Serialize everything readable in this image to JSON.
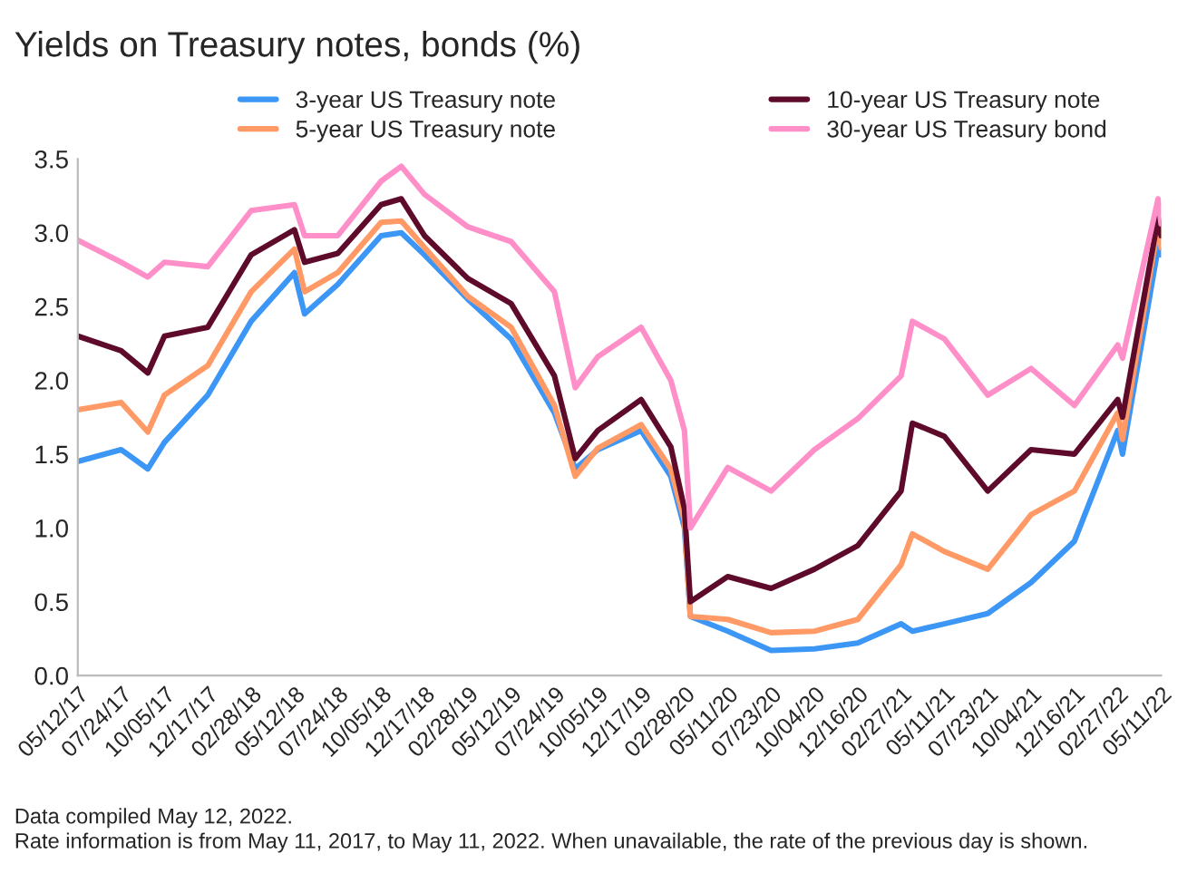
{
  "chart_data": {
    "type": "line",
    "title": "Yields on Treasury notes, bonds (%)",
    "x": [
      "2017-05-12",
      "2017-07-24",
      "2017-09-07",
      "2017-10-05",
      "2017-12-17",
      "2018-02-28",
      "2018-05-12",
      "2018-05-29",
      "2018-07-24",
      "2018-10-05",
      "2018-11-08",
      "2018-12-17",
      "2019-02-28",
      "2019-05-12",
      "2019-07-24",
      "2019-08-28",
      "2019-10-05",
      "2019-12-17",
      "2020-02-05",
      "2020-02-28",
      "2020-03-09",
      "2020-05-11",
      "2020-07-23",
      "2020-10-04",
      "2020-12-16",
      "2021-02-27",
      "2021-03-18",
      "2021-05-11",
      "2021-07-23",
      "2021-10-04",
      "2021-12-16",
      "2022-02-27",
      "2022-03-07",
      "2022-05-06",
      "2022-05-11"
    ],
    "series": [
      {
        "name": "3-year US Treasury note",
        "color": "#3b96f5",
        "values": [
          1.45,
          1.53,
          1.4,
          1.58,
          1.9,
          2.4,
          2.73,
          2.45,
          2.65,
          2.98,
          3.0,
          2.85,
          2.55,
          2.28,
          1.78,
          1.4,
          1.53,
          1.66,
          1.35,
          1.0,
          0.4,
          0.3,
          0.17,
          0.18,
          0.22,
          0.35,
          0.3,
          0.35,
          0.42,
          0.63,
          0.91,
          1.66,
          1.5,
          2.9,
          2.85
        ]
      },
      {
        "name": "5-year US Treasury note",
        "color": "#ff9a66",
        "values": [
          1.8,
          1.85,
          1.65,
          1.9,
          2.1,
          2.6,
          2.89,
          2.6,
          2.73,
          3.07,
          3.08,
          2.9,
          2.57,
          2.36,
          1.83,
          1.35,
          1.54,
          1.7,
          1.4,
          1.05,
          0.4,
          0.38,
          0.29,
          0.3,
          0.38,
          0.75,
          0.96,
          0.84,
          0.72,
          1.09,
          1.25,
          1.78,
          1.6,
          3.05,
          2.9
        ]
      },
      {
        "name": "10-year US Treasury note",
        "color": "#5e0a2a",
        "values": [
          2.3,
          2.2,
          2.05,
          2.3,
          2.36,
          2.85,
          3.02,
          2.8,
          2.86,
          3.19,
          3.23,
          2.98,
          2.69,
          2.52,
          2.03,
          1.47,
          1.66,
          1.87,
          1.55,
          1.13,
          0.5,
          0.67,
          0.59,
          0.72,
          0.88,
          1.25,
          1.71,
          1.62,
          1.25,
          1.53,
          1.5,
          1.87,
          1.75,
          3.1,
          2.98
        ]
      },
      {
        "name": "30-year US Treasury bond",
        "color": "#ff8fc8",
        "values": [
          2.95,
          2.8,
          2.7,
          2.8,
          2.77,
          3.15,
          3.19,
          2.98,
          2.98,
          3.35,
          3.45,
          3.26,
          3.04,
          2.94,
          2.6,
          1.95,
          2.16,
          2.36,
          2.0,
          1.66,
          1.0,
          1.41,
          1.25,
          1.53,
          1.74,
          2.03,
          2.4,
          2.28,
          1.9,
          2.08,
          1.83,
          2.24,
          2.15,
          3.23,
          3.06
        ]
      }
    ],
    "xlim": [
      "2017-05-12",
      "2022-05-11"
    ],
    "xticks": [
      {
        "value": "2017-05-12",
        "label": "05/12/17"
      },
      {
        "value": "2017-07-24",
        "label": "07/24/17"
      },
      {
        "value": "2017-10-05",
        "label": "10/05/17"
      },
      {
        "value": "2017-12-17",
        "label": "12/17/17"
      },
      {
        "value": "2018-02-28",
        "label": "02/28/18"
      },
      {
        "value": "2018-05-12",
        "label": "05/12/18"
      },
      {
        "value": "2018-07-24",
        "label": "07/24/18"
      },
      {
        "value": "2018-10-05",
        "label": "10/05/18"
      },
      {
        "value": "2018-12-17",
        "label": "12/17/18"
      },
      {
        "value": "2019-02-28",
        "label": "02/28/19"
      },
      {
        "value": "2019-05-12",
        "label": "05/12/19"
      },
      {
        "value": "2019-07-24",
        "label": "07/24/19"
      },
      {
        "value": "2019-10-05",
        "label": "10/05/19"
      },
      {
        "value": "2019-12-17",
        "label": "12/17/19"
      },
      {
        "value": "2020-02-28",
        "label": "02/28/20"
      },
      {
        "value": "2020-05-11",
        "label": "05/11/20"
      },
      {
        "value": "2020-07-23",
        "label": "07/23/20"
      },
      {
        "value": "2020-10-04",
        "label": "10/04/20"
      },
      {
        "value": "2020-12-16",
        "label": "12/16/20"
      },
      {
        "value": "2021-02-27",
        "label": "02/27/21"
      },
      {
        "value": "2021-05-11",
        "label": "05/11/21"
      },
      {
        "value": "2021-07-23",
        "label": "07/23/21"
      },
      {
        "value": "2021-10-04",
        "label": "10/04/21"
      },
      {
        "value": "2021-12-16",
        "label": "12/16/21"
      },
      {
        "value": "2022-02-27",
        "label": "02/27/22"
      },
      {
        "value": "2022-05-11",
        "label": "05/11/22"
      }
    ],
    "ylim": [
      0,
      3.5
    ],
    "yticks": [
      {
        "value": 0,
        "label": "0.0"
      },
      {
        "value": 0.5,
        "label": "0.5"
      },
      {
        "value": 1,
        "label": "1.0"
      },
      {
        "value": 1.5,
        "label": "1.5"
      },
      {
        "value": 2,
        "label": "2.0"
      },
      {
        "value": 2.5,
        "label": "2.5"
      },
      {
        "value": 3,
        "label": "3.0"
      },
      {
        "value": 3.5,
        "label": "3.5"
      }
    ],
    "grid": false,
    "legend": "top",
    "marker": "none",
    "line_style": "solid",
    "annotations": [
      "Data compiled May 12, 2022.",
      "Rate information is from May 11, 2017, to May 11, 2022. When unavailable, the rate of the previous day is shown."
    ]
  }
}
